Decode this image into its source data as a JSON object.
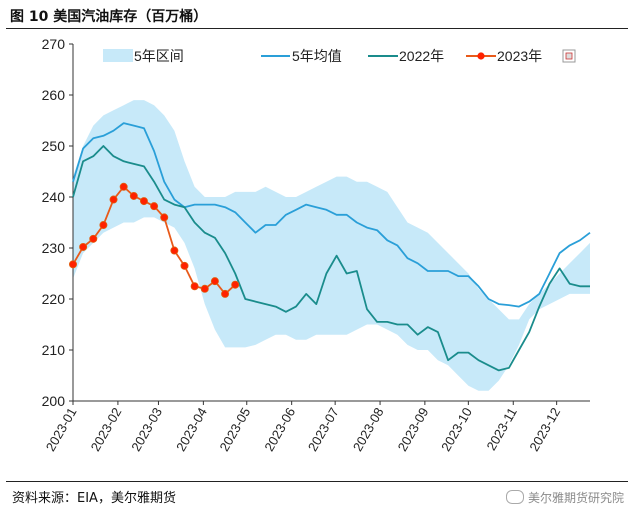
{
  "figure": {
    "title": "图 10  美国汽油库存（百万桶）",
    "source": "资料来源：EIA，美尔雅期货",
    "watermark": "美尔雅期货研究院"
  },
  "colors": {
    "range": "#c7e9f9",
    "avg5": "#2a9fd8",
    "y2022": "#1a8c8c",
    "y2023": "#e85a1a",
    "marker": "#ff2200"
  },
  "chart_data": {
    "type": "line",
    "title": "美国汽油库存（百万桶）",
    "xlabel": "",
    "ylabel": "",
    "ylim": [
      200,
      270
    ],
    "yticks": [
      200,
      210,
      220,
      230,
      240,
      250,
      260,
      270
    ],
    "xlim": [
      0,
      51
    ],
    "xtick_labels": [
      "2023-01",
      "2023-02",
      "2023-03",
      "2023-04",
      "2023-05",
      "2023-06",
      "2023-07",
      "2023-08",
      "2023-09",
      "2023-10",
      "2023-11",
      "2023-12"
    ],
    "xtick_positions": [
      0,
      4.43,
      8.43,
      12.86,
      17.14,
      21.57,
      25.86,
      30.29,
      34.71,
      39,
      43.43,
      47.71
    ],
    "legend": [
      "5年区间",
      "5年均值",
      "2022年",
      "2023年"
    ],
    "range_band": {
      "name": "5年区间",
      "upper": [
        244,
        250,
        254,
        256,
        257,
        258,
        259,
        259,
        258,
        256,
        253,
        247,
        242,
        240,
        240,
        240,
        241,
        241,
        241,
        242,
        241,
        240,
        240,
        241,
        242,
        243,
        244,
        244,
        243,
        243,
        242,
        241,
        238,
        235,
        234,
        233,
        231,
        229,
        227,
        225,
        222,
        220,
        218,
        216,
        216,
        219,
        221,
        223,
        225,
        227,
        229,
        231
      ],
      "lower": [
        224,
        229,
        231,
        233,
        234,
        235,
        235,
        236,
        236,
        235,
        234,
        231,
        226,
        219,
        214,
        210.5,
        210.5,
        210.5,
        211,
        212,
        213,
        213,
        212,
        212,
        213,
        213,
        213,
        213,
        214,
        215,
        215,
        214,
        213,
        211,
        210,
        210,
        208,
        207,
        205,
        203,
        202,
        202,
        204,
        207,
        211,
        216,
        218,
        219,
        220,
        221,
        221,
        221
      ]
    },
    "series": [
      {
        "name": "5年均值",
        "x": [
          0,
          1,
          2,
          3,
          4,
          5,
          6,
          7,
          8,
          9,
          10,
          11,
          12,
          13,
          14,
          15,
          16,
          17,
          18,
          19,
          20,
          21,
          22,
          23,
          24,
          25,
          26,
          27,
          28,
          29,
          30,
          31,
          32,
          33,
          34,
          35,
          36,
          37,
          38,
          39,
          40,
          41,
          42,
          43,
          44,
          45,
          46,
          47,
          48,
          49,
          50,
          51
        ],
        "values": [
          243,
          249.5,
          251.5,
          252,
          253,
          254.5,
          254,
          253.5,
          249,
          243,
          239.5,
          238,
          238.5,
          238.5,
          238.5,
          238,
          237,
          235,
          233,
          234.5,
          234.5,
          236.5,
          237.5,
          238.5,
          238,
          237.5,
          236.5,
          236.5,
          235,
          234,
          233.5,
          231.5,
          230.5,
          228,
          227,
          225.5,
          225.5,
          225.5,
          224.5,
          224.5,
          222.5,
          220,
          219,
          218.8,
          218.5,
          219.5,
          221,
          225,
          229,
          230.5,
          231.5,
          233
        ]
      },
      {
        "name": "2022年",
        "x": [
          0,
          1,
          2,
          3,
          4,
          5,
          6,
          7,
          8,
          9,
          10,
          11,
          12,
          13,
          14,
          15,
          16,
          17,
          18,
          19,
          20,
          21,
          22,
          23,
          24,
          25,
          26,
          27,
          28,
          29,
          30,
          31,
          32,
          33,
          34,
          35,
          36,
          37,
          38,
          39,
          40,
          41,
          42,
          43,
          44,
          45,
          46,
          47,
          48,
          49,
          50,
          51
        ],
        "values": [
          240,
          247,
          248,
          250,
          248,
          247,
          246.5,
          246,
          243,
          239.5,
          238.5,
          238,
          235,
          233,
          232,
          229,
          225,
          220,
          219.5,
          219,
          218.5,
          217.5,
          218.5,
          221,
          219,
          225,
          228.5,
          225,
          225.5,
          218,
          215.5,
          215.5,
          215,
          215,
          213,
          214.5,
          213.5,
          208,
          209.5,
          209.5,
          208,
          207,
          206,
          206.5,
          210,
          213.5,
          218.5,
          223,
          226,
          223,
          222.5,
          222.5
        ]
      },
      {
        "name": "2023年",
        "x": [
          0,
          1,
          2,
          3,
          4,
          5,
          6,
          7,
          8,
          9,
          10,
          11,
          12,
          13,
          14,
          15,
          16
        ],
        "values": [
          226.8,
          230.2,
          231.8,
          234.5,
          239.5,
          242,
          240.2,
          239.2,
          238.2,
          236,
          229.5,
          226.5,
          222.5,
          222,
          223.5,
          221,
          222.8
        ]
      }
    ]
  }
}
